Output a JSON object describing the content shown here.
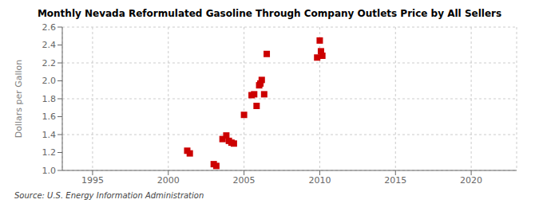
{
  "chart_data": {
    "type": "scatter",
    "title": "Monthly Nevada Reformulated Gasoline Through Company Outlets Price by All Sellers",
    "ylabel": "Dollars per Gallon",
    "annotations": [
      "Source: U.S. Energy Information Administration"
    ],
    "x": [
      2001.25,
      2001.42,
      2003.0,
      2003.17,
      2003.58,
      2003.83,
      2004.0,
      2004.17,
      2004.33,
      2005.0,
      2005.5,
      2005.67,
      2005.83,
      2006.0,
      2006.08,
      2006.17,
      2006.33,
      2006.5,
      2009.83,
      2010.0,
      2010.08,
      2010.17
    ],
    "values": [
      1.22,
      1.19,
      1.07,
      1.05,
      1.35,
      1.39,
      1.33,
      1.31,
      1.3,
      1.62,
      1.84,
      1.85,
      1.72,
      1.95,
      1.97,
      2.01,
      1.85,
      2.3,
      2.26,
      2.45,
      2.33,
      2.28
    ],
    "color": "#cc0000",
    "marker": "square",
    "xlim": [
      1993,
      2023
    ],
    "ylim": [
      1.0,
      2.6
    ],
    "xticks": [
      1995,
      2000,
      2005,
      2010,
      2015,
      2020
    ],
    "yticks": [
      {
        "value": 1.0,
        "label": "1.0"
      },
      1.2,
      1.4,
      1.6,
      1.8,
      {
        "value": 2.0,
        "label": "2.0"
      },
      2.2,
      2.4,
      2.6
    ],
    "grid": true
  }
}
